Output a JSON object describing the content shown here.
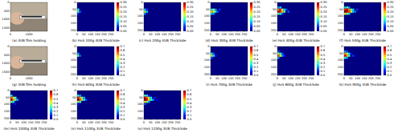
{
  "chart_data": [
    {
      "type": "image",
      "title": "(a) 4UB film holding",
      "xlim": [
        0,
        2000
      ],
      "ylim": [
        0,
        1700
      ],
      "xticks": [
        0,
        1000
      ],
      "yticks": [
        0,
        500,
        1000,
        1500
      ]
    },
    {
      "type": "heatmap",
      "title": "(b) HoS 100g 4UB ThickSide",
      "xlim": [
        0,
        275
      ],
      "ylim": [
        0,
        210
      ],
      "xticks": [
        0,
        50,
        100,
        150,
        200,
        250
      ],
      "yticks": [
        0,
        50,
        100,
        150,
        200
      ],
      "cell_size": 15,
      "colorbar_range": [
        0,
        0.3
      ],
      "colorbar_ticks": [
        {
          "value": 0,
          "label": "0.00"
        },
        {
          "value": 0.05,
          "label": "0.05"
        },
        {
          "value": 0.1,
          "label": "0.10"
        },
        {
          "value": 0.15,
          "label": "0.15"
        },
        {
          "value": 0.2,
          "label": "0.20"
        },
        {
          "value": 0.25,
          "label": "0.25"
        },
        {
          "value": 0.3,
          "label": "0.30"
        }
      ],
      "cells": [
        [
          0,
          45,
          0.12
        ],
        [
          0,
          60,
          0.15
        ],
        [
          15,
          60,
          0.06
        ],
        [
          0,
          75,
          0.05
        ]
      ]
    },
    {
      "type": "heatmap",
      "title": "(c) HoS 200g 4UB ThickSide",
      "xlim": [
        0,
        275
      ],
      "ylim": [
        0,
        210
      ],
      "xticks": [
        0,
        50,
        100,
        150,
        200,
        250
      ],
      "yticks": [
        0,
        50,
        100,
        150,
        200
      ],
      "cell_size": 15,
      "colorbar_range": [
        0,
        0.3
      ],
      "colorbar_ticks": [
        {
          "value": 0,
          "label": "0.00"
        },
        {
          "value": 0.05,
          "label": "0.05"
        },
        {
          "value": 0.1,
          "label": "0.10"
        },
        {
          "value": 0.15,
          "label": "0.15"
        },
        {
          "value": 0.2,
          "label": "0.20"
        },
        {
          "value": 0.25,
          "label": "0.25"
        },
        {
          "value": 0.3,
          "label": "0.30"
        }
      ],
      "cells": [
        [
          0,
          45,
          0.1
        ],
        [
          0,
          60,
          0.18
        ],
        [
          15,
          60,
          0.1
        ],
        [
          15,
          45,
          0.05
        ],
        [
          0,
          75,
          0.08
        ]
      ]
    },
    {
      "type": "heatmap",
      "title": "(d) HoS 300g 4UB ThickSide",
      "xlim": [
        0,
        275
      ],
      "ylim": [
        0,
        210
      ],
      "xticks": [
        0,
        50,
        100,
        150,
        200,
        250
      ],
      "yticks": [
        0,
        50,
        100,
        150,
        200
      ],
      "cell_size": 15,
      "colorbar_range": [
        0,
        0.3
      ],
      "colorbar_ticks": [
        {
          "value": 0,
          "label": "0.00"
        },
        {
          "value": 0.05,
          "label": "0.05"
        },
        {
          "value": 0.1,
          "label": "0.10"
        },
        {
          "value": 0.15,
          "label": "0.15"
        },
        {
          "value": 0.2,
          "label": "0.20"
        },
        {
          "value": 0.25,
          "label": "0.25"
        },
        {
          "value": 0.3,
          "label": "0.30"
        }
      ],
      "cells": [
        [
          0,
          45,
          0.12
        ],
        [
          15,
          45,
          0.15
        ],
        [
          30,
          45,
          0.08
        ],
        [
          0,
          60,
          0.2
        ],
        [
          15,
          60,
          0.18
        ],
        [
          30,
          60,
          0.12
        ],
        [
          45,
          60,
          0.06
        ],
        [
          0,
          75,
          0.1
        ],
        [
          15,
          75,
          0.08
        ],
        [
          60,
          45,
          0.05
        ]
      ]
    },
    {
      "type": "heatmap",
      "title": "(e) HoS 400g 4UB ThickSide",
      "xlim": [
        0,
        275
      ],
      "ylim": [
        0,
        210
      ],
      "xticks": [
        0,
        50,
        100,
        150,
        200,
        250
      ],
      "yticks": [
        0,
        50,
        100,
        150,
        200
      ],
      "cell_size": 15,
      "colorbar_range": [
        0,
        0.3
      ],
      "colorbar_ticks": [
        {
          "value": 0,
          "label": "0.00"
        },
        {
          "value": 0.05,
          "label": "0.05"
        },
        {
          "value": 0.1,
          "label": "0.10"
        },
        {
          "value": 0.15,
          "label": "0.15"
        },
        {
          "value": 0.2,
          "label": "0.20"
        },
        {
          "value": 0.25,
          "label": "0.25"
        },
        {
          "value": 0.3,
          "label": "0.30"
        }
      ],
      "cells": [
        [
          0,
          30,
          0.08
        ],
        [
          15,
          30,
          0.1
        ],
        [
          0,
          45,
          0.22
        ],
        [
          15,
          45,
          0.26
        ],
        [
          30,
          45,
          0.18
        ],
        [
          45,
          45,
          0.1
        ],
        [
          60,
          45,
          0.06
        ],
        [
          0,
          60,
          0.28
        ],
        [
          15,
          60,
          0.25
        ],
        [
          30,
          60,
          0.2
        ],
        [
          45,
          60,
          0.14
        ],
        [
          75,
          60,
          0.06
        ],
        [
          0,
          75,
          0.15
        ],
        [
          15,
          75,
          0.12
        ],
        [
          30,
          75,
          0.06
        ]
      ]
    },
    {
      "type": "heatmap",
      "title": "(f) HoS 500g 4UB ThickSide",
      "xlim": [
        0,
        275
      ],
      "ylim": [
        0,
        210
      ],
      "xticks": [
        0,
        50,
        100,
        150,
        200,
        250
      ],
      "yticks": [
        0,
        50,
        100,
        150,
        200
      ],
      "cell_size": 15,
      "colorbar_range": [
        0,
        0.3
      ],
      "colorbar_ticks": [
        {
          "value": 0,
          "label": "0.00"
        },
        {
          "value": 0.05,
          "label": "0.05"
        },
        {
          "value": 0.1,
          "label": "0.10"
        },
        {
          "value": 0.15,
          "label": "0.15"
        },
        {
          "value": 0.2,
          "label": "0.20"
        },
        {
          "value": 0.25,
          "label": "0.25"
        },
        {
          "value": 0.3,
          "label": "0.30"
        }
      ],
      "cells": [
        [
          0,
          30,
          0.1
        ],
        [
          15,
          30,
          0.14
        ],
        [
          30,
          30,
          0.08
        ],
        [
          0,
          45,
          0.25
        ],
        [
          15,
          45,
          0.28
        ],
        [
          30,
          45,
          0.22
        ],
        [
          45,
          45,
          0.15
        ],
        [
          60,
          45,
          0.1
        ],
        [
          90,
          45,
          0.05
        ],
        [
          0,
          60,
          0.3
        ],
        [
          15,
          60,
          0.27
        ],
        [
          30,
          60,
          0.24
        ],
        [
          45,
          60,
          0.18
        ],
        [
          60,
          60,
          0.1
        ],
        [
          75,
          60,
          0.07
        ],
        [
          0,
          75,
          0.18
        ],
        [
          15,
          75,
          0.15
        ],
        [
          30,
          75,
          0.1
        ]
      ]
    },
    {
      "type": "image",
      "title": "(g) 3UB film holding",
      "xlim": [
        0,
        2000
      ],
      "ylim": [
        0,
        1700
      ],
      "xticks": [
        0,
        1000
      ],
      "yticks": [
        0,
        500,
        1000,
        1500
      ]
    },
    {
      "type": "heatmap",
      "title": "(h) HoS 600g 3UB ThickSide",
      "xlim": [
        0,
        275
      ],
      "ylim": [
        0,
        210
      ],
      "xticks": [
        0,
        50,
        100,
        150,
        200,
        250
      ],
      "yticks": [
        0,
        50,
        100,
        150,
        200
      ],
      "cell_size": 15,
      "colorbar_range": [
        0,
        0.7
      ],
      "colorbar_ticks": [
        {
          "value": 0,
          "label": "0.0"
        },
        0.1,
        0.2,
        0.3,
        0.4,
        0.5,
        0.6,
        0.7
      ],
      "cells": [
        [
          0,
          45,
          0.2
        ],
        [
          0,
          60,
          0.35
        ],
        [
          15,
          60,
          0.15
        ]
      ]
    },
    {
      "type": "heatmap",
      "title": "(i) HoS 700g 3UB ThickSide",
      "xlim": [
        0,
        275
      ],
      "ylim": [
        0,
        210
      ],
      "xticks": [
        0,
        50,
        100,
        150,
        200,
        250
      ],
      "yticks": [
        0,
        50,
        100,
        150,
        200
      ],
      "cell_size": 15,
      "colorbar_range": [
        0,
        0.7
      ],
      "colorbar_ticks": [
        {
          "value": 0,
          "label": "0.0"
        },
        0.1,
        0.2,
        0.3,
        0.4,
        0.5,
        0.6,
        0.7
      ],
      "cells": [
        [
          0,
          45,
          0.3
        ],
        [
          15,
          45,
          0.15
        ],
        [
          0,
          60,
          0.45
        ],
        [
          15,
          60,
          0.25
        ],
        [
          30,
          60,
          0.1
        ],
        [
          0,
          75,
          0.15
        ]
      ]
    },
    {
      "type": "heatmap",
      "title": "(j) HoS 800g 3UB ThickSide",
      "xlim": [
        0,
        275
      ],
      "ylim": [
        0,
        210
      ],
      "xticks": [
        0,
        50,
        100,
        150,
        200,
        250
      ],
      "yticks": [
        0,
        50,
        100,
        150,
        200
      ],
      "cell_size": 15,
      "colorbar_range": [
        0,
        0.7
      ],
      "colorbar_ticks": [
        {
          "value": 0,
          "label": "0.0"
        },
        0.1,
        0.2,
        0.3,
        0.4,
        0.5,
        0.6,
        0.7
      ],
      "cells": [
        [
          0,
          30,
          0.15
        ],
        [
          0,
          45,
          0.4
        ],
        [
          15,
          45,
          0.3
        ],
        [
          30,
          45,
          0.15
        ],
        [
          0,
          60,
          0.55
        ],
        [
          15,
          60,
          0.4
        ],
        [
          30,
          60,
          0.2
        ],
        [
          45,
          60,
          0.1
        ],
        [
          0,
          75,
          0.2
        ]
      ]
    },
    {
      "type": "heatmap",
      "title": "(k) HoS 900g 3UB ThickSide",
      "xlim": [
        0,
        275
      ],
      "ylim": [
        0,
        210
      ],
      "xticks": [
        0,
        50,
        100,
        150,
        200,
        250
      ],
      "yticks": [
        0,
        50,
        100,
        150,
        200
      ],
      "cell_size": 15,
      "colorbar_range": [
        0,
        0.7
      ],
      "colorbar_ticks": [
        {
          "value": 0,
          "label": "0.0"
        },
        0.1,
        0.2,
        0.3,
        0.4,
        0.5,
        0.6,
        0.7
      ],
      "cells": [
        [
          0,
          30,
          0.2
        ],
        [
          15,
          30,
          0.15
        ],
        [
          0,
          45,
          0.5
        ],
        [
          15,
          45,
          0.4
        ],
        [
          30,
          45,
          0.25
        ],
        [
          45,
          45,
          0.1
        ],
        [
          0,
          60,
          0.6
        ],
        [
          15,
          60,
          0.5
        ],
        [
          30,
          60,
          0.3
        ],
        [
          60,
          60,
          0.12
        ],
        [
          0,
          75,
          0.3
        ],
        [
          15,
          75,
          0.2
        ]
      ]
    },
    {
      "type": "heatmap",
      "title": "(m) HoS 1000g 3UB ThickSide",
      "xlim": [
        0,
        275
      ],
      "ylim": [
        0,
        210
      ],
      "xticks": [
        0,
        50,
        100,
        150,
        200,
        250
      ],
      "yticks": [
        0,
        50,
        100,
        150,
        200
      ],
      "cell_size": 15,
      "colorbar_range": [
        0,
        0.7
      ],
      "colorbar_ticks": [
        {
          "value": 0,
          "label": "0.0"
        },
        0.1,
        0.2,
        0.3,
        0.4,
        0.5,
        0.6,
        0.7
      ],
      "cells": [
        [
          0,
          30,
          0.25
        ],
        [
          0,
          45,
          0.55
        ],
        [
          15,
          45,
          0.45
        ],
        [
          30,
          45,
          0.3
        ],
        [
          0,
          60,
          0.65
        ],
        [
          15,
          60,
          0.5
        ],
        [
          30,
          60,
          0.35
        ],
        [
          45,
          60,
          0.2
        ],
        [
          0,
          75,
          0.35
        ],
        [
          15,
          75,
          0.25
        ],
        [
          30,
          90,
          0.1
        ]
      ]
    },
    {
      "type": "heatmap",
      "title": "(n) HoS 1100g 3UB ThickSide",
      "xlim": [
        0,
        275
      ],
      "ylim": [
        0,
        210
      ],
      "xticks": [
        0,
        50,
        100,
        150,
        200,
        250
      ],
      "yticks": [
        0,
        50,
        100,
        150,
        200
      ],
      "cell_size": 15,
      "colorbar_range": [
        0,
        0.7
      ],
      "colorbar_ticks": [
        {
          "value": 0,
          "label": "0.0"
        },
        0.1,
        0.2,
        0.3,
        0.4,
        0.5,
        0.6,
        0.7
      ],
      "cells": [
        [
          0,
          30,
          0.3
        ],
        [
          15,
          30,
          0.2
        ],
        [
          0,
          45,
          0.6
        ],
        [
          15,
          45,
          0.5
        ],
        [
          30,
          45,
          0.35
        ],
        [
          45,
          45,
          0.2
        ],
        [
          0,
          60,
          0.7
        ],
        [
          15,
          60,
          0.55
        ],
        [
          30,
          60,
          0.4
        ],
        [
          45,
          60,
          0.25
        ],
        [
          60,
          60,
          0.12
        ],
        [
          0,
          75,
          0.4
        ],
        [
          15,
          75,
          0.3
        ],
        [
          0,
          90,
          0.1
        ]
      ]
    },
    {
      "type": "heatmap",
      "title": "(o) HoS 1200g 3UB ThickSide",
      "xlim": [
        0,
        275
      ],
      "ylim": [
        0,
        210
      ],
      "xticks": [
        0,
        50,
        100,
        150,
        200,
        250
      ],
      "yticks": [
        0,
        50,
        100,
        150,
        200
      ],
      "cell_size": 15,
      "colorbar_range": [
        0,
        0.7
      ],
      "colorbar_ticks": [
        {
          "value": 0,
          "label": "0.0"
        },
        0.1,
        0.2,
        0.3,
        0.4,
        0.5,
        0.6,
        0.7
      ],
      "cells": [
        [
          0,
          30,
          0.35
        ],
        [
          15,
          30,
          0.25
        ],
        [
          30,
          30,
          0.1
        ],
        [
          0,
          45,
          0.65
        ],
        [
          15,
          45,
          0.55
        ],
        [
          30,
          45,
          0.4
        ],
        [
          45,
          45,
          0.25
        ],
        [
          75,
          45,
          0.1
        ],
        [
          0,
          60,
          0.7
        ],
        [
          15,
          60,
          0.6
        ],
        [
          30,
          60,
          0.45
        ],
        [
          45,
          60,
          0.3
        ],
        [
          60,
          60,
          0.2
        ],
        [
          90,
          60,
          0.08
        ],
        [
          0,
          75,
          0.45
        ],
        [
          15,
          75,
          0.35
        ],
        [
          30,
          75,
          0.2
        ],
        [
          0,
          90,
          0.15
        ]
      ]
    }
  ]
}
